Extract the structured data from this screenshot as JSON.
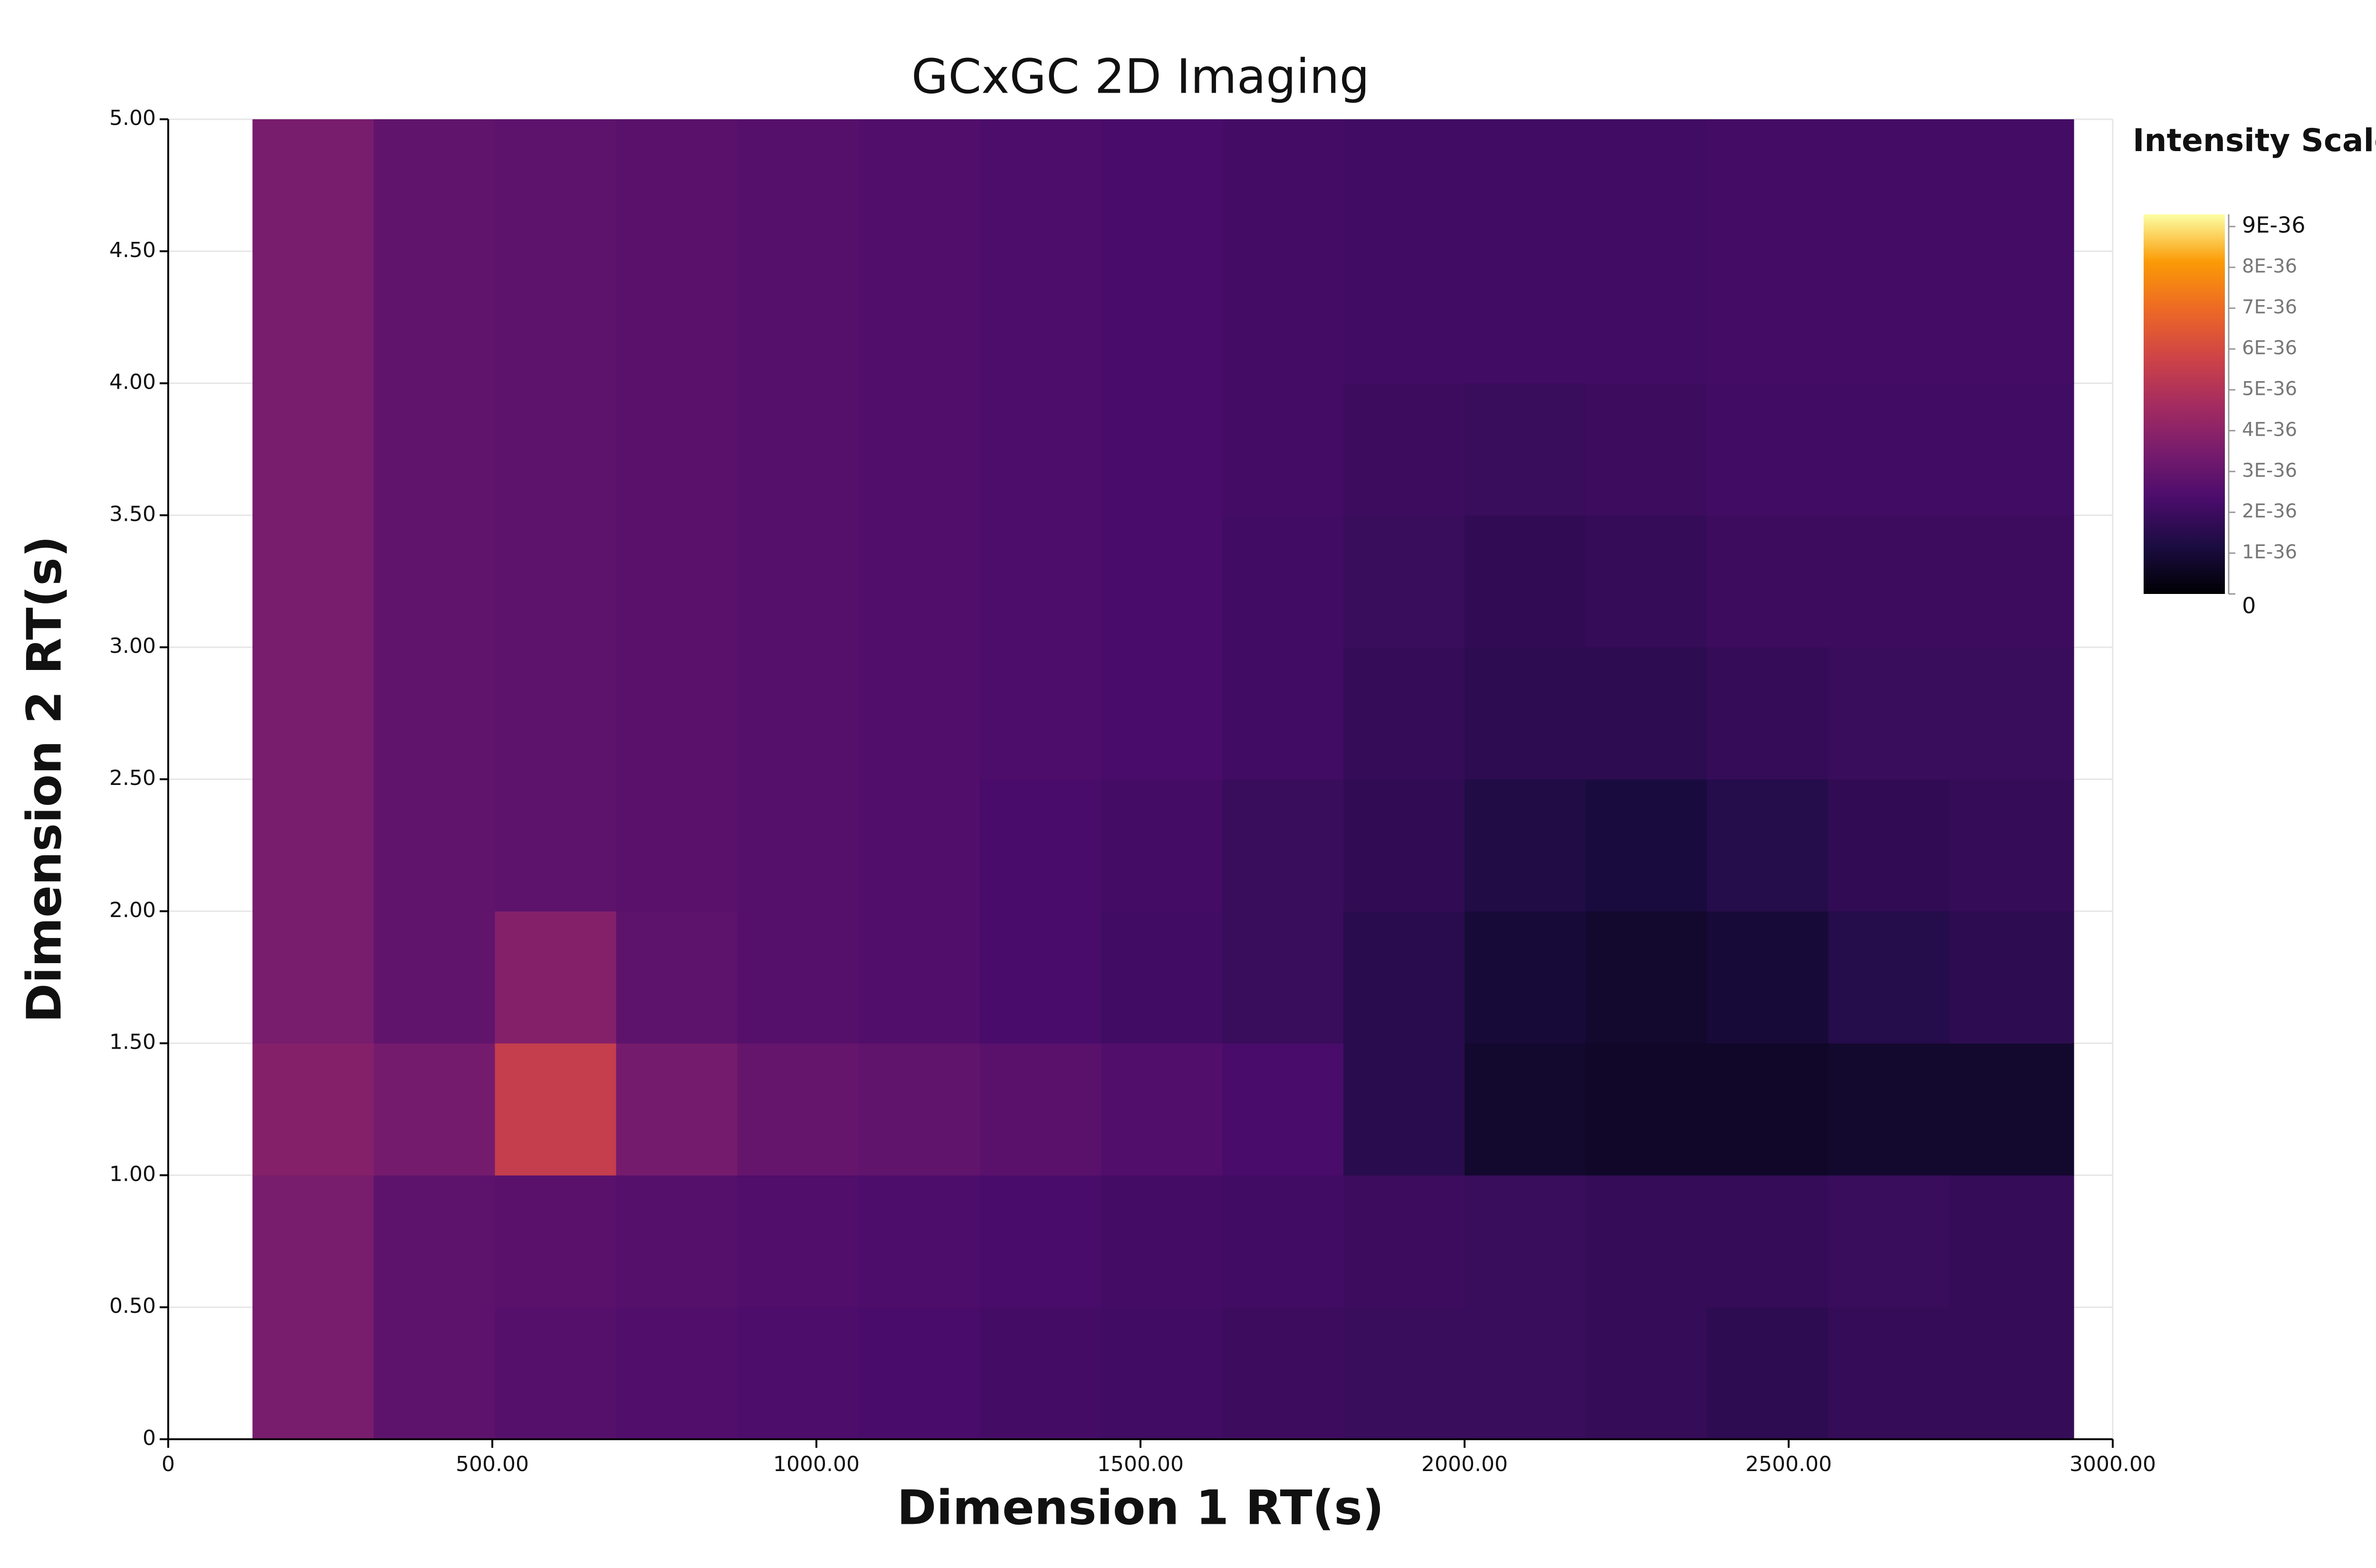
{
  "chart_data": {
    "type": "heatmap",
    "title": "GCxGC 2D Imaging",
    "xlabel": "Dimension 1 RT(s)",
    "ylabel": "Dimension 2 RT(s)",
    "colorbar_title": "Intensity Scale",
    "xlim": [
      0,
      3000
    ],
    "ylim": [
      0,
      5
    ],
    "xticks": [
      0,
      {
        "value": 500,
        "label": "500.00"
      },
      {
        "value": 1000,
        "label": "1000.00"
      },
      {
        "value": 1500,
        "label": "1500.00"
      },
      {
        "value": 2000,
        "label": "2000.00"
      },
      {
        "value": 2500,
        "label": "2500.00"
      },
      {
        "value": 3000,
        "label": "3000.00"
      }
    ],
    "yticks": [
      0,
      {
        "value": 0.5,
        "label": "0.50"
      },
      {
        "value": 1,
        "label": "1.00"
      },
      {
        "value": 1.5,
        "label": "1.50"
      },
      {
        "value": 2,
        "label": "2.00"
      },
      {
        "value": 2.5,
        "label": "2.50"
      },
      {
        "value": 3,
        "label": "3.00"
      },
      {
        "value": 3.5,
        "label": "3.50"
      },
      {
        "value": 4,
        "label": "4.00"
      },
      {
        "value": 4.5,
        "label": "4.50"
      },
      {
        "value": 5,
        "label": "5.00"
      }
    ],
    "grid": true,
    "xbins": [
      130,
      317,
      504,
      691,
      878,
      1065,
      1252,
      1439,
      1626,
      1813,
      2000,
      2187,
      2374,
      2561,
      2748,
      2940
    ],
    "ybins": [
      0,
      0.5,
      1,
      1.5,
      2,
      2.5,
      3,
      3.5,
      4,
      4.5,
      5
    ],
    "z": [
      [
        3.5e-36,
        2.8e-36,
        2.6e-36,
        2.5e-36,
        2.4e-36,
        2.3e-36,
        2.2e-36,
        2.1e-36,
        2e-36,
        1.9e-36,
        1.9e-36,
        1.8e-36,
        1.6e-36,
        1.8e-36,
        1.8e-36
      ],
      [
        3.5e-36,
        2.8e-36,
        2.7e-36,
        2.6e-36,
        2.5e-36,
        2.4e-36,
        2.3e-36,
        2.2e-36,
        2.1e-36,
        2e-36,
        1.9e-36,
        1.8e-36,
        1.8e-36,
        1.9e-36,
        1.8e-36
      ],
      [
        3.8e-36,
        3.4e-36,
        5.5e-36,
        3.4e-36,
        3e-36,
        2.9e-36,
        2.7e-36,
        2.5e-36,
        2.3e-36,
        1.5e-36,
        8e-37,
        7e-37,
        7e-37,
        8e-37,
        8e-37
      ],
      [
        3.5e-36,
        2.9e-36,
        3.8e-36,
        2.8e-36,
        2.6e-36,
        2.5e-36,
        2.3e-36,
        2.1e-36,
        1.9e-36,
        1.5e-36,
        1e-36,
        8e-37,
        1e-36,
        1.4e-36,
        1.6e-36
      ],
      [
        3.5e-36,
        2.9e-36,
        2.8e-36,
        2.7e-36,
        2.6e-36,
        2.5e-36,
        2.3e-36,
        2.2e-36,
        1.9e-36,
        1.7e-36,
        1.3e-36,
        1.1e-36,
        1.4e-36,
        1.7e-36,
        1.8e-36
      ],
      [
        3.5e-36,
        2.9e-36,
        2.8e-36,
        2.7e-36,
        2.6e-36,
        2.5e-36,
        2.4e-36,
        2.3e-36,
        2.1e-36,
        1.8e-36,
        1.6e-36,
        1.6e-36,
        1.8e-36,
        1.9e-36,
        1.9e-36
      ],
      [
        3.5e-36,
        2.9e-36,
        2.8e-36,
        2.7e-36,
        2.6e-36,
        2.5e-36,
        2.4e-36,
        2.3e-36,
        2.1e-36,
        1.9e-36,
        1.7e-36,
        1.8e-36,
        2e-36,
        2e-36,
        2e-36
      ],
      [
        3.5e-36,
        2.9e-36,
        2.8e-36,
        2.7e-36,
        2.6e-36,
        2.5e-36,
        2.4e-36,
        2.3e-36,
        2.2e-36,
        2e-36,
        1.9e-36,
        2e-36,
        2.1e-36,
        2.1e-36,
        2.1e-36
      ],
      [
        3.5e-36,
        2.9e-36,
        2.8e-36,
        2.7e-36,
        2.6e-36,
        2.5e-36,
        2.4e-36,
        2.3e-36,
        2.2e-36,
        2.1e-36,
        2.1e-36,
        2.1e-36,
        2.2e-36,
        2.2e-36,
        2.2e-36
      ],
      [
        3.5e-36,
        2.9e-36,
        2.8e-36,
        2.7e-36,
        2.6e-36,
        2.5e-36,
        2.4e-36,
        2.3e-36,
        2.2e-36,
        2.1e-36,
        2.1e-36,
        2.1e-36,
        2.2e-36,
        2.2e-36,
        2.2e-36
      ]
    ],
    "zlim": [
      0,
      9.3e-36
    ],
    "zticks": [
      0,
      {
        "value": 1e-36,
        "label": "1E-36"
      },
      {
        "value": 2e-36,
        "label": "2E-36"
      },
      {
        "value": 3e-36,
        "label": "3E-36"
      },
      {
        "value": 4e-36,
        "label": "4E-36"
      },
      {
        "value": 5e-36,
        "label": "5E-36"
      },
      {
        "value": 6e-36,
        "label": "6E-36"
      },
      {
        "value": 7e-36,
        "label": "7E-36"
      },
      {
        "value": 8e-36,
        "label": "8E-36"
      },
      {
        "value": 9e-36,
        "label": "9E-36"
      }
    ],
    "colorscale": [
      "#000004",
      "#1b0c41",
      "#4a0c6b",
      "#781c6d",
      "#a52c60",
      "#cf4446",
      "#ed6925",
      "#fb9b06",
      "#fcffa4"
    ]
  }
}
